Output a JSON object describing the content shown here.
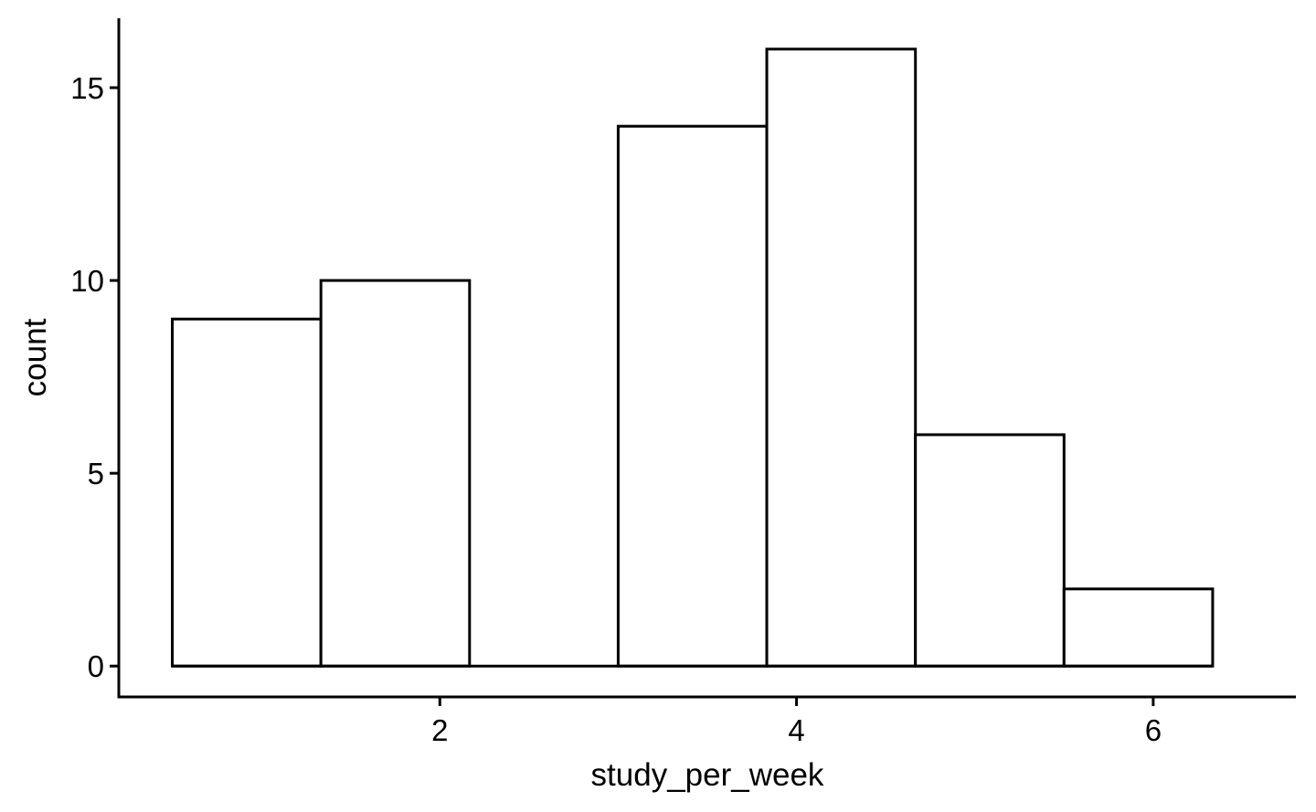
{
  "chart_data": {
    "type": "bar",
    "subtype": "histogram",
    "xlabel": "study_per_week",
    "ylabel": "count",
    "bin_width": 0.8333,
    "bins": [
      {
        "x_start": 0.5,
        "x_end": 1.3333,
        "count": 9
      },
      {
        "x_start": 1.3333,
        "x_end": 2.1667,
        "count": 10
      },
      {
        "x_start": 2.1667,
        "x_end": 3.0,
        "count": 0
      },
      {
        "x_start": 3.0,
        "x_end": 3.8333,
        "count": 14
      },
      {
        "x_start": 3.8333,
        "x_end": 4.6667,
        "count": 16
      },
      {
        "x_start": 4.6667,
        "x_end": 5.5,
        "count": 6
      },
      {
        "x_start": 5.5,
        "x_end": 6.3333,
        "count": 2
      }
    ],
    "xlim": [
      0.2,
      6.8
    ],
    "ylim": [
      -0.8,
      16.8
    ],
    "x_ticks": [
      2,
      4,
      6
    ],
    "x_tick_labels": [
      "2",
      "4",
      "6"
    ],
    "y_ticks": [
      0,
      5,
      10,
      15
    ],
    "y_tick_labels": [
      "0",
      "5",
      "10",
      "15"
    ],
    "grid": false,
    "legend": "none",
    "bar_fill": "#ffffff",
    "bar_stroke": "#000000"
  }
}
